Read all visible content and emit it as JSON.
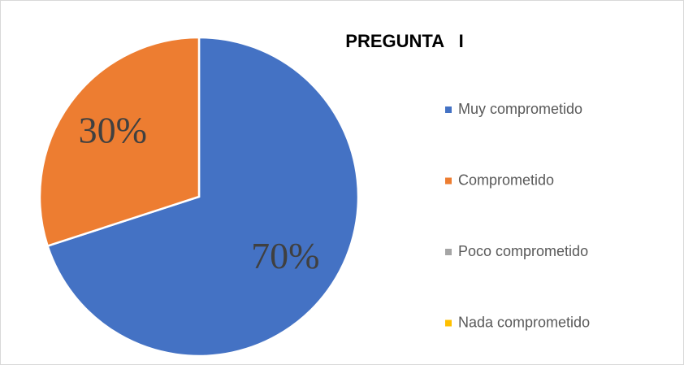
{
  "chart_data": {
    "type": "pie",
    "title": "PREGUNTA   I",
    "categories": [
      "Muy comprometido",
      "Comprometido",
      "Poco comprometido",
      "Nada comprometido"
    ],
    "values": [
      70,
      30,
      0,
      0
    ],
    "value_labels": [
      "70%",
      "30%",
      null,
      null
    ],
    "colors": [
      "#4472c4",
      "#ed7d31",
      "#a5a5a5",
      "#ffc000"
    ],
    "legend": "right"
  }
}
